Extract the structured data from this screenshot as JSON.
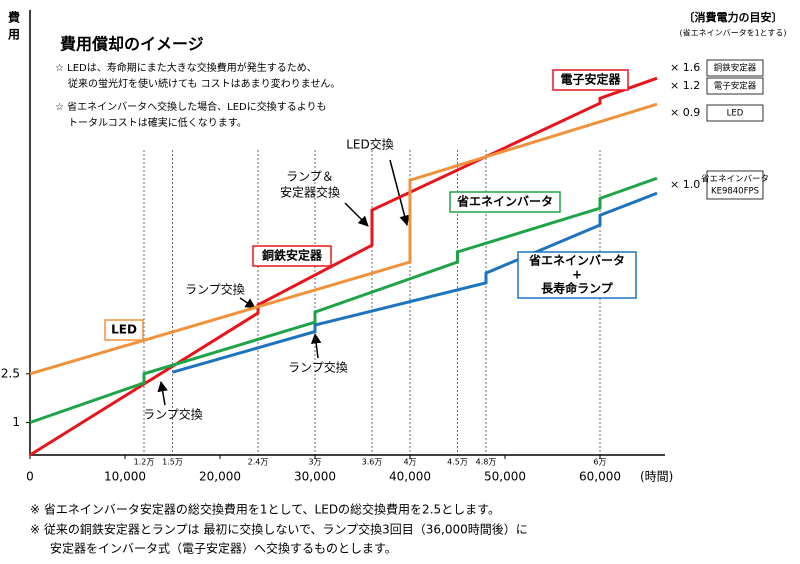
{
  "chart_data": {
    "type": "line",
    "title": "費用償却のイメージ",
    "y_label_lines": [
      "費",
      "用"
    ],
    "x_label": "(時間)",
    "notes": [
      "☆ LEDは、寿命期にまた大きな交換費用が発生するため、",
      "従来の蛍光灯を使い続けても コストはあまり変わりません。",
      "☆ 省エネインバータへ交換した場合、LEDに交換するよりも",
      "トータルコストは確実に低くなります。"
    ],
    "footnotes": [
      "※ 省エネインバータ安定器の総交換費用を1として、LEDの総交換費用を2.5とします。",
      "※ 従来の銅鉄安定器とランプは 最初に交換しないで、ランプ交換3回目（36,000時間後）に",
      "安定器をインバータ式（電子安定器）へ交換するものとします。"
    ],
    "xlim": [
      0,
      66000
    ],
    "ylim": [
      0,
      13.7
    ],
    "xticks": [
      0,
      {
        "value": 10000,
        "label": "10,000"
      },
      {
        "value": 20000,
        "label": "20,000"
      },
      {
        "value": 30000,
        "label": "30,000"
      },
      {
        "value": 40000,
        "label": "40,000"
      },
      {
        "value": 50000,
        "label": "50,000"
      },
      {
        "value": 60000,
        "label": "60,000"
      }
    ],
    "yticks": [
      1,
      2.5
    ],
    "markers": [
      {
        "value": 12000,
        "label": "1.2万"
      },
      {
        "value": 15000,
        "label": "1.5万"
      },
      {
        "value": 24000,
        "label": "2.4万"
      },
      {
        "value": 30000,
        "label": "3万"
      },
      {
        "value": 36000,
        "label": "3.6万"
      },
      {
        "value": 40000,
        "label": "4万"
      },
      {
        "value": 45000,
        "label": "4.5万"
      },
      {
        "value": 48000,
        "label": "4.8万"
      },
      {
        "value": 60000,
        "label": "6万"
      }
    ],
    "series": [
      {
        "label": [
          "電子安定器"
        ],
        "color": "#e8141c",
        "x": [
          0,
          24000,
          24000,
          36000,
          36000,
          60000,
          60000,
          66000
        ],
        "values": [
          0,
          4.37,
          4.62,
          6.46,
          7.54,
          10.83,
          10.98,
          11.6
        ]
      },
      {
        "label": [
          "LED"
        ],
        "color": "#f0923c",
        "x": [
          0,
          40000,
          40000,
          66000
        ],
        "values": [
          2.5,
          5.94,
          8.46,
          10.8
        ]
      },
      {
        "label": [
          "省エネインバータ"
        ],
        "color": "#1fa347",
        "x": [
          0,
          12000,
          12000,
          30000,
          30000,
          45000,
          45000,
          60000,
          60000,
          66000
        ],
        "values": [
          1,
          2.22,
          2.5,
          4.09,
          4.4,
          5.94,
          6.25,
          7.6,
          7.9,
          8.52
        ]
      },
      {
        "label": [
          "省エネインバータ",
          "+",
          "長寿命ランプ"
        ],
        "color": "#1e73be",
        "x": [
          15000,
          30000,
          30000,
          48000,
          48000,
          60000,
          60000,
          66000
        ],
        "values": [
          2.55,
          3.8,
          4.0,
          5.3,
          5.6,
          7.08,
          7.38,
          8.06
        ]
      }
    ],
    "steel_label": "銅鉄安定器",
    "callouts": [
      [
        "LED交換"
      ],
      [
        "ランプ＆",
        "安定器交換"
      ],
      [
        "ランプ交換"
      ],
      [
        "ランプ交換"
      ],
      [
        "ランプ交換"
      ]
    ],
    "ratio_title": "〔消費電力の目安〕",
    "ratio_subtitle": "(省エネインバータを1とする)",
    "ratios": [
      {
        "factor": "× 1.6",
        "name": [
          "銅鉄安定器"
        ]
      },
      {
        "factor": "× 1.2",
        "name": [
          "電子安定器"
        ]
      },
      {
        "factor": "× 0.9",
        "name": [
          "LED"
        ]
      },
      {
        "factor": "× 1.0",
        "name": [
          "省エネインバータ",
          "KE9840FPS"
        ]
      }
    ]
  }
}
